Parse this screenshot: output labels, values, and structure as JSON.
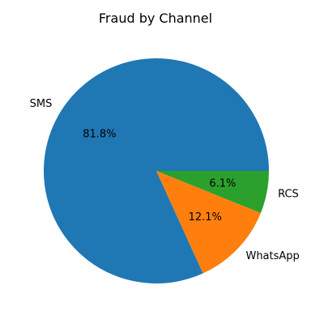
{
  "chart_data": {
    "type": "pie",
    "title": "Fraud by Channel",
    "slices": [
      {
        "label": "SMS",
        "percent": 81.8,
        "percent_label": "81.8%",
        "color": "#1f77b4"
      },
      {
        "label": "WhatsApp",
        "percent": 12.1,
        "percent_label": "12.1%",
        "color": "#ff7f0e"
      },
      {
        "label": "RCS",
        "percent": 6.1,
        "percent_label": "6.1%",
        "color": "#2ca02c"
      }
    ],
    "start_angle_deg": 0,
    "direction": "counterclockwise",
    "legend": "none"
  }
}
